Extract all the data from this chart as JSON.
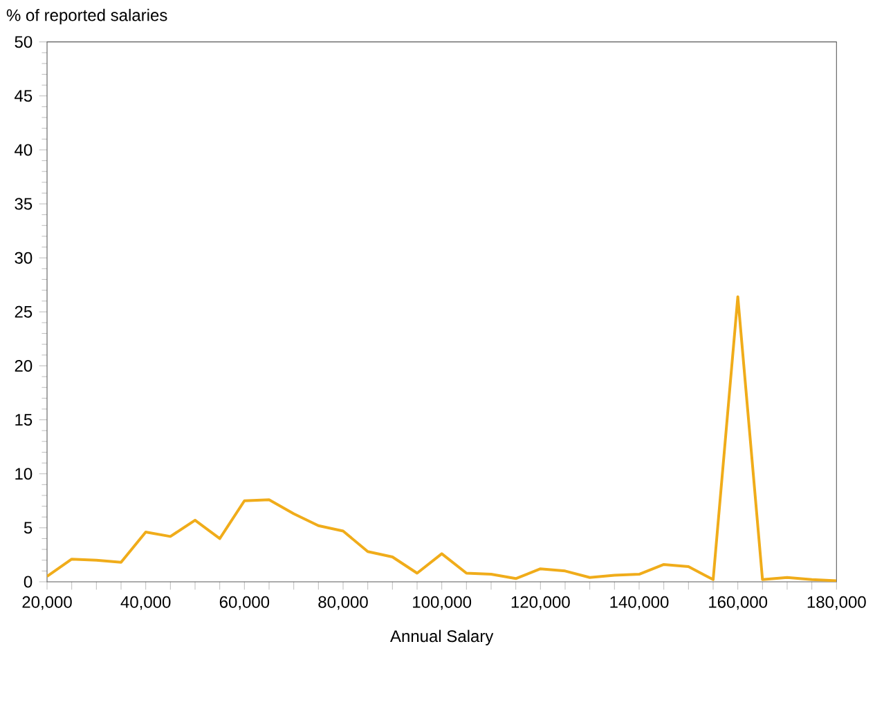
{
  "chart_data": {
    "type": "line",
    "ylabel": "% of reported salaries",
    "xlabel": "Annual Salary",
    "x": [
      20000,
      25000,
      30000,
      35000,
      40000,
      45000,
      50000,
      55000,
      60000,
      65000,
      70000,
      75000,
      80000,
      85000,
      90000,
      95000,
      100000,
      105000,
      110000,
      115000,
      120000,
      125000,
      130000,
      135000,
      140000,
      145000,
      150000,
      155000,
      160000,
      165000,
      170000,
      175000,
      180000
    ],
    "series": [
      {
        "color": "#f0ac1a",
        "values": [
          0.5,
          2.1,
          2.0,
          1.8,
          4.6,
          4.2,
          5.7,
          4.0,
          7.5,
          7.6,
          6.3,
          5.2,
          4.7,
          2.8,
          2.3,
          0.8,
          2.6,
          0.8,
          0.7,
          0.3,
          1.2,
          1.0,
          0.4,
          0.6,
          0.7,
          1.6,
          1.4,
          0.2,
          26.4,
          0.2,
          0.4,
          0.2,
          0.1
        ]
      }
    ],
    "xlim": [
      20000,
      180000
    ],
    "ylim": [
      0,
      50
    ],
    "xticks": [
      {
        "value": 20000,
        "label": "20,000"
      },
      {
        "value": 25000,
        "label": null
      },
      {
        "value": 30000,
        "label": null
      },
      {
        "value": 35000,
        "label": null
      },
      {
        "value": 40000,
        "label": "40,000"
      },
      {
        "value": 45000,
        "label": null
      },
      {
        "value": 50000,
        "label": null
      },
      {
        "value": 55000,
        "label": null
      },
      {
        "value": 60000,
        "label": "60,000"
      },
      {
        "value": 65000,
        "label": null
      },
      {
        "value": 70000,
        "label": null
      },
      {
        "value": 75000,
        "label": null
      },
      {
        "value": 80000,
        "label": "80,000"
      },
      {
        "value": 85000,
        "label": null
      },
      {
        "value": 90000,
        "label": null
      },
      {
        "value": 95000,
        "label": null
      },
      {
        "value": 100000,
        "label": "100,000"
      },
      {
        "value": 105000,
        "label": null
      },
      {
        "value": 110000,
        "label": null
      },
      {
        "value": 115000,
        "label": null
      },
      {
        "value": 120000,
        "label": "120,000"
      },
      {
        "value": 125000,
        "label": null
      },
      {
        "value": 130000,
        "label": null
      },
      {
        "value": 135000,
        "label": null
      },
      {
        "value": 140000,
        "label": "140,000"
      },
      {
        "value": 145000,
        "label": null
      },
      {
        "value": 150000,
        "label": null
      },
      {
        "value": 155000,
        "label": null
      },
      {
        "value": 160000,
        "label": "160,000"
      },
      {
        "value": 165000,
        "label": null
      },
      {
        "value": 170000,
        "label": null
      },
      {
        "value": 175000,
        "label": null
      },
      {
        "value": 180000,
        "label": "180,000"
      }
    ],
    "yticks": [
      0,
      5,
      10,
      15,
      20,
      25,
      30,
      35,
      40,
      45,
      50
    ],
    "grid": false,
    "legend": false,
    "marker": "none",
    "line_style": "solid"
  }
}
